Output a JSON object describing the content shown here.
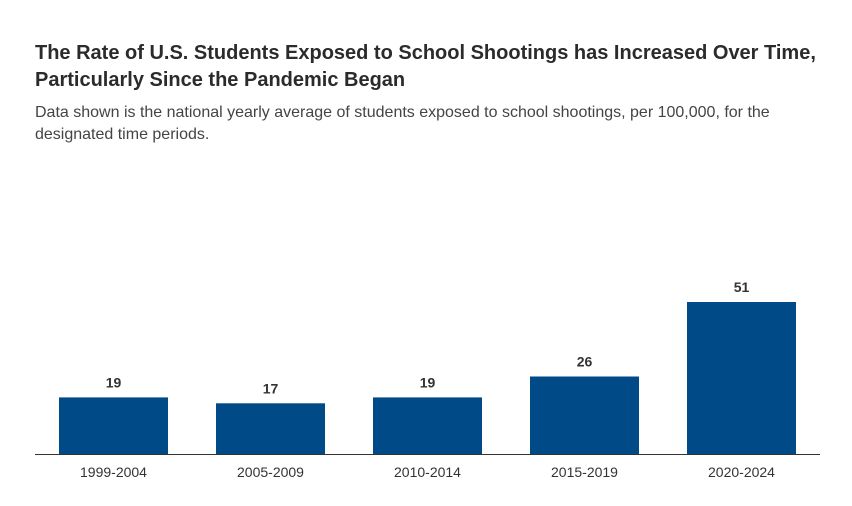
{
  "chart_data": {
    "type": "bar",
    "title": "The Rate of U.S. Students Exposed to School Shootings has Increased Over Time, Particularly Since the Pandemic Began",
    "subtitle": "Data shown is the national yearly average of students exposed to school shootings, per 100,000, for the designated time periods.",
    "categories": [
      "1999-2004",
      "2005-2009",
      "2010-2014",
      "2015-2019",
      "2020-2024"
    ],
    "values": [
      19,
      17,
      19,
      26,
      51
    ],
    "data_labels": [
      "19",
      "17",
      "19",
      "26",
      "51"
    ],
    "xlabel": "",
    "ylabel": "",
    "ylim": [
      0,
      51
    ],
    "grid": false,
    "legend": "none",
    "colors": {
      "bar": "#004b87",
      "axis": "#333333"
    }
  }
}
